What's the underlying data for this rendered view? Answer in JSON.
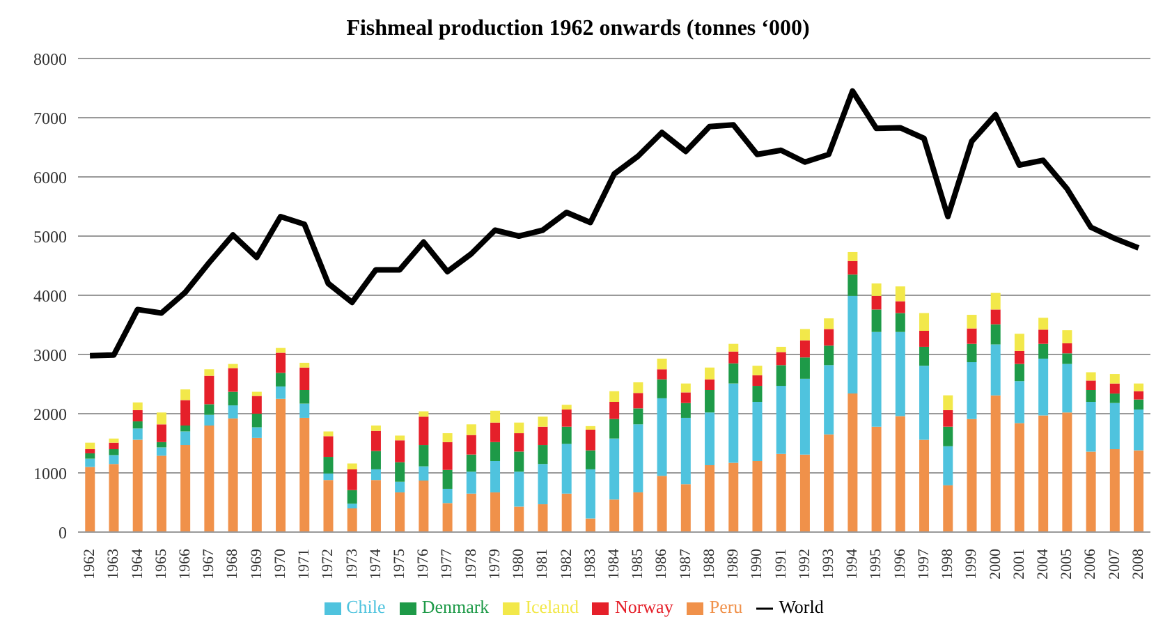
{
  "chart_data": {
    "type": "bar",
    "title": "Fishmeal production 1962 onwards (tonnes ‘000)",
    "stacked": true,
    "grid": "y",
    "legend": "bottom",
    "ylim": [
      0,
      8000
    ],
    "yticks": [
      0,
      1000,
      2000,
      3000,
      4000,
      5000,
      6000,
      7000,
      8000
    ],
    "categories": [
      "1962",
      "1963",
      "1964",
      "1965",
      "1966",
      "1967",
      "1968",
      "1969",
      "1970",
      "1971",
      "1972",
      "1973",
      "1974",
      "1975",
      "1976",
      "1977",
      "1978",
      "1979",
      "1980",
      "1981",
      "1982",
      "1983",
      "1984",
      "1985",
      "1986",
      "1987",
      "1988",
      "1989",
      "1990",
      "1991",
      "1992",
      "1993",
      "1994",
      "1995",
      "1996",
      "1997",
      "1998",
      "1999",
      "2000",
      "2001",
      "2004",
      "2005",
      "2006",
      "2007",
      "2008"
    ],
    "series": [
      {
        "name": "Peru",
        "color": "#f0914a",
        "values": [
          1100,
          1150,
          1560,
          1290,
          1470,
          1800,
          1920,
          1590,
          2250,
          1930,
          880,
          400,
          880,
          670,
          870,
          490,
          650,
          670,
          430,
          470,
          650,
          230,
          550,
          670,
          950,
          810,
          1130,
          1170,
          1200,
          1320,
          1310,
          1650,
          2340,
          1780,
          1960,
          1560,
          790,
          1910,
          2310,
          1840,
          1970,
          2020,
          1360,
          1400,
          1380
        ]
      },
      {
        "name": "Chile",
        "color": "#4fc3de",
        "values": [
          140,
          150,
          190,
          140,
          230,
          180,
          220,
          180,
          210,
          240,
          110,
          80,
          180,
          180,
          240,
          240,
          370,
          530,
          590,
          680,
          840,
          830,
          1030,
          1150,
          1310,
          1120,
          890,
          1340,
          1000,
          1150,
          1280,
          1170,
          1650,
          1600,
          1420,
          1250,
          660,
          960,
          860,
          710,
          960,
          820,
          840,
          780,
          690
        ]
      },
      {
        "name": "Denmark",
        "color": "#1e9a48",
        "values": [
          90,
          100,
          120,
          90,
          100,
          180,
          230,
          230,
          230,
          230,
          280,
          230,
          310,
          330,
          360,
          320,
          290,
          320,
          340,
          320,
          290,
          320,
          330,
          270,
          320,
          250,
          380,
          340,
          270,
          350,
          360,
          330,
          360,
          380,
          320,
          320,
          330,
          310,
          340,
          290,
          250,
          180,
          200,
          160,
          170
        ]
      },
      {
        "name": "Norway",
        "color": "#e5202a",
        "values": [
          70,
          110,
          190,
          300,
          430,
          480,
          400,
          300,
          340,
          380,
          350,
          350,
          340,
          370,
          480,
          470,
          330,
          330,
          310,
          310,
          290,
          350,
          290,
          260,
          170,
          180,
          180,
          200,
          180,
          220,
          290,
          280,
          230,
          230,
          200,
          270,
          280,
          260,
          250,
          220,
          240,
          170,
          160,
          170,
          140
        ]
      },
      {
        "name": "Iceland",
        "color": "#f2e84a",
        "values": [
          110,
          70,
          130,
          200,
          180,
          110,
          70,
          70,
          80,
          80,
          80,
          100,
          90,
          80,
          90,
          150,
          180,
          200,
          180,
          170,
          80,
          60,
          180,
          180,
          180,
          150,
          200,
          130,
          160,
          90,
          190,
          180,
          150,
          210,
          250,
          300,
          250,
          230,
          280,
          290,
          200,
          220,
          140,
          160,
          130
        ]
      },
      {
        "name": "World",
        "type": "line",
        "color": "#000000",
        "values": [
          2980,
          2990,
          3760,
          3700,
          4050,
          4550,
          5020,
          4640,
          5330,
          5200,
          4200,
          3880,
          4430,
          4430,
          4900,
          4400,
          4700,
          5100,
          5000,
          5100,
          5400,
          5230,
          6050,
          6350,
          6750,
          6430,
          6850,
          6880,
          6380,
          6450,
          6250,
          6380,
          7450,
          6820,
          6830,
          6650,
          5330,
          6600,
          7050,
          6200,
          6280,
          5800,
          5150,
          4960,
          4800
        ]
      }
    ]
  }
}
